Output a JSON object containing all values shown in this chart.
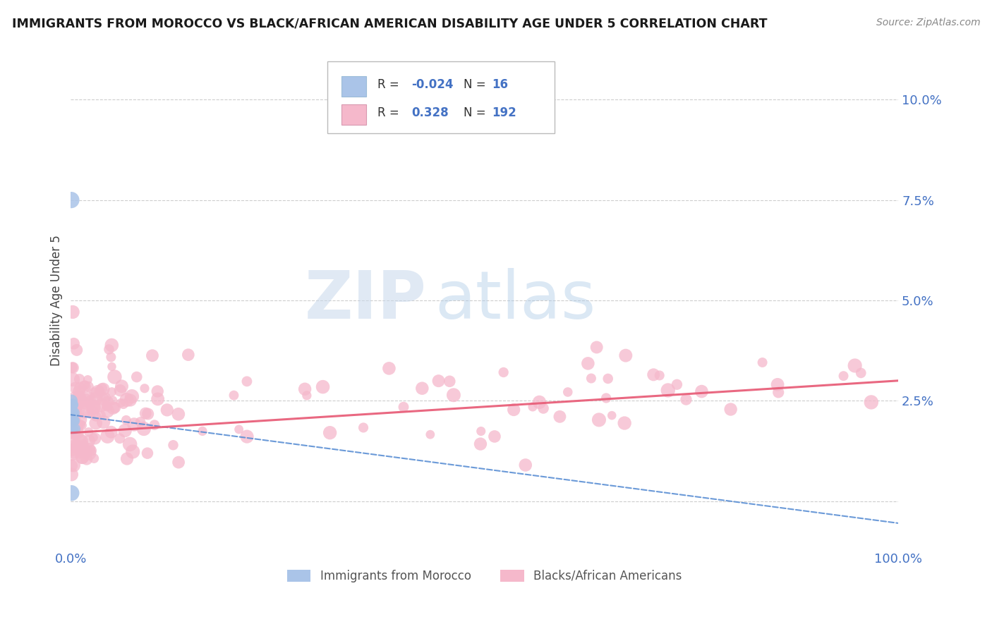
{
  "title": "IMMIGRANTS FROM MOROCCO VS BLACK/AFRICAN AMERICAN DISABILITY AGE UNDER 5 CORRELATION CHART",
  "source": "Source: ZipAtlas.com",
  "ylabel": "Disability Age Under 5",
  "ytick_vals": [
    0.0,
    0.025,
    0.05,
    0.075,
    0.1
  ],
  "ytick_labels": [
    "",
    "2.5%",
    "5.0%",
    "7.5%",
    "10.0%"
  ],
  "xlim": [
    0.0,
    1.0
  ],
  "ylim": [
    -0.012,
    0.112
  ],
  "color_morocco": "#aac4e8",
  "color_morocco_dark": "#5b8fd4",
  "color_black": "#f5b8cb",
  "color_black_dark": "#e8607a",
  "watermark_zip": "ZIP",
  "watermark_atlas": "atlas",
  "background_color": "#ffffff",
  "grid_color": "#c8c8c8",
  "title_color": "#1a1a1a",
  "axis_label_color": "#4472c4",
  "legend_color_r": "#4472c4",
  "legend_color_n": "#4472c4"
}
